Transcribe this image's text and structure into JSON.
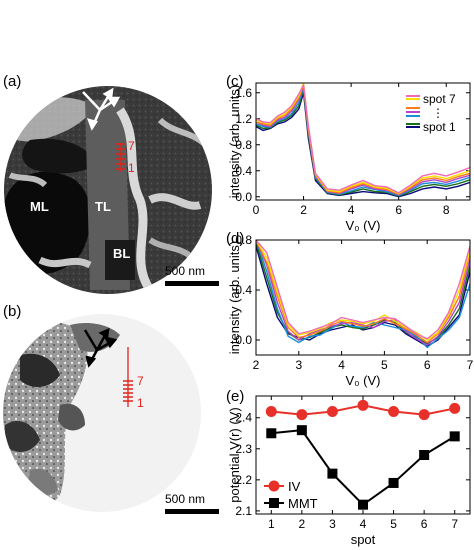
{
  "panels": {
    "a": {
      "label": "(a)",
      "regions": [
        "ML",
        "TL",
        "BL"
      ],
      "spot_top": "7",
      "spot_bottom": "1",
      "scalebar": "500 nm"
    },
    "b": {
      "label": "(b)",
      "spot_top": "7",
      "spot_bottom": "1",
      "scalebar": "500 nm"
    },
    "c": {
      "label": "(c)"
    },
    "d": {
      "label": "(d)"
    },
    "e": {
      "label": "(e)"
    }
  },
  "colors": {
    "spot_series": [
      "#0b0b7a",
      "#1a6e1a",
      "#1b8fd8",
      "#b347c8",
      "#ff7a1a",
      "#f5e000",
      "#f26ab5"
    ],
    "iv": "#e8302a",
    "mmt": "#000000",
    "spot_marker": "#e0241b"
  },
  "chart_data": [
    {
      "id": "c",
      "type": "line",
      "xlabel": "V₀ (V)",
      "ylabel": "intensity (arb. units)",
      "xlim": [
        0,
        9
      ],
      "ylim": [
        -0.05,
        1.75
      ],
      "xticks": [
        0,
        2,
        4,
        6,
        8
      ],
      "yticks": [
        0.0,
        0.4,
        0.8,
        1.2,
        1.6
      ],
      "yticklabels": [
        "0.0",
        "0.4",
        "0.8",
        "1.2",
        "1.6"
      ],
      "legend": {
        "position": "top-right",
        "entries": [
          "spot 7",
          "spot 1"
        ],
        "ellipsis": "⋮"
      },
      "x": [
        0,
        0.3,
        0.6,
        0.9,
        1.2,
        1.5,
        1.8,
        2.0,
        2.2,
        2.5,
        3.0,
        3.5,
        4.0,
        4.5,
        5.0,
        5.5,
        6.0,
        6.5,
        7.0,
        7.5,
        8.0,
        8.5,
        9.0
      ],
      "series": [
        {
          "values": [
            1.08,
            1.02,
            1.05,
            1.12,
            1.15,
            1.22,
            1.35,
            1.6,
            0.9,
            0.25,
            0.05,
            0.02,
            0.05,
            0.08,
            0.06,
            0.05,
            0.0,
            0.05,
            0.12,
            0.15,
            0.12,
            0.16,
            0.22
          ]
        },
        {
          "values": [
            1.1,
            1.05,
            1.06,
            1.14,
            1.18,
            1.25,
            1.4,
            1.65,
            0.95,
            0.28,
            0.06,
            0.03,
            0.07,
            0.12,
            0.08,
            0.07,
            0.01,
            0.08,
            0.16,
            0.19,
            0.16,
            0.2,
            0.26
          ]
        },
        {
          "values": [
            1.12,
            1.08,
            1.07,
            1.16,
            1.2,
            1.28,
            1.45,
            1.68,
            1.0,
            0.3,
            0.07,
            0.04,
            0.09,
            0.15,
            0.11,
            0.08,
            0.02,
            0.1,
            0.2,
            0.22,
            0.19,
            0.24,
            0.3
          ]
        },
        {
          "values": [
            1.15,
            1.1,
            1.08,
            1.18,
            1.22,
            1.32,
            1.5,
            1.7,
            1.02,
            0.32,
            0.08,
            0.05,
            0.12,
            0.18,
            0.12,
            0.1,
            0.03,
            0.12,
            0.23,
            0.26,
            0.22,
            0.28,
            0.33
          ]
        },
        {
          "values": [
            1.15,
            1.12,
            1.1,
            1.2,
            1.25,
            1.35,
            1.52,
            1.72,
            1.05,
            0.33,
            0.09,
            0.06,
            0.14,
            0.2,
            0.14,
            0.11,
            0.04,
            0.14,
            0.26,
            0.29,
            0.25,
            0.31,
            0.36
          ]
        },
        {
          "values": [
            1.18,
            1.14,
            1.12,
            1.22,
            1.27,
            1.38,
            1.55,
            1.75,
            1.08,
            0.35,
            0.1,
            0.08,
            0.16,
            0.22,
            0.15,
            0.13,
            0.05,
            0.16,
            0.29,
            0.32,
            0.28,
            0.34,
            0.4
          ]
        },
        {
          "values": [
            1.2,
            1.15,
            1.14,
            1.24,
            1.3,
            1.4,
            1.58,
            1.72,
            1.1,
            0.36,
            0.12,
            0.1,
            0.18,
            0.25,
            0.17,
            0.15,
            0.06,
            0.18,
            0.32,
            0.36,
            0.32,
            0.38,
            0.45
          ]
        }
      ]
    },
    {
      "id": "d",
      "type": "line",
      "xlabel": "V₀ (V)",
      "ylabel": "intensity (arb. units)",
      "xlim": [
        2,
        7
      ],
      "ylim": [
        -0.12,
        0.8
      ],
      "xticks": [
        2,
        3,
        4,
        5,
        6,
        7
      ],
      "yticks": [
        0.0,
        0.4,
        0.8
      ],
      "yticklabels": [
        "0.0",
        "0.4",
        "0.8"
      ],
      "x": [
        2.0,
        2.25,
        2.5,
        2.75,
        3.0,
        3.25,
        3.5,
        3.75,
        4.0,
        4.25,
        4.5,
        4.75,
        5.0,
        5.25,
        5.5,
        5.75,
        6.0,
        6.25,
        6.5,
        6.75,
        7.0
      ],
      "series": [
        {
          "values": [
            0.75,
            0.45,
            0.18,
            0.05,
            0.02,
            0.0,
            0.05,
            0.08,
            0.1,
            0.12,
            0.08,
            0.1,
            0.14,
            0.12,
            0.05,
            0.0,
            -0.05,
            0.0,
            0.1,
            0.2,
            0.55
          ]
        },
        {
          "values": [
            0.78,
            0.5,
            0.22,
            0.06,
            0.0,
            0.02,
            0.06,
            0.1,
            0.12,
            0.1,
            0.09,
            0.12,
            0.16,
            0.14,
            0.06,
            0.02,
            -0.03,
            0.02,
            0.12,
            0.25,
            0.6
          ]
        },
        {
          "values": [
            0.8,
            0.55,
            0.25,
            0.03,
            -0.02,
            0.03,
            0.04,
            0.09,
            0.14,
            0.11,
            0.1,
            0.14,
            0.12,
            0.1,
            0.08,
            0.03,
            -0.06,
            0.01,
            0.08,
            0.18,
            0.45
          ]
        },
        {
          "values": [
            0.8,
            0.6,
            0.3,
            0.07,
            0.0,
            0.05,
            0.08,
            0.11,
            0.13,
            0.14,
            0.12,
            0.1,
            0.15,
            0.16,
            0.07,
            0.01,
            -0.04,
            0.03,
            0.15,
            0.3,
            0.65
          ]
        },
        {
          "values": [
            0.8,
            0.62,
            0.35,
            0.1,
            0.02,
            0.04,
            0.07,
            0.12,
            0.15,
            0.13,
            0.11,
            0.13,
            0.17,
            0.13,
            0.09,
            0.04,
            -0.02,
            0.05,
            0.18,
            0.35,
            0.7
          ]
        },
        {
          "values": [
            0.8,
            0.66,
            0.38,
            0.12,
            0.04,
            0.06,
            0.09,
            0.14,
            0.16,
            0.15,
            0.13,
            0.15,
            0.2,
            0.15,
            0.1,
            0.06,
            0.0,
            0.06,
            0.2,
            0.4,
            0.72
          ]
        },
        {
          "values": [
            0.8,
            0.7,
            0.42,
            0.14,
            0.05,
            0.07,
            0.1,
            0.13,
            0.18,
            0.16,
            0.14,
            0.16,
            0.18,
            0.17,
            0.11,
            0.05,
            0.01,
            0.08,
            0.22,
            0.45,
            0.75
          ]
        }
      ]
    },
    {
      "id": "e",
      "type": "line",
      "xlabel": "spot",
      "ylabel": "potential V(r) (V)",
      "xlim": [
        0.5,
        7.5
      ],
      "ylim": [
        2.09,
        2.47
      ],
      "xticks": [
        1,
        2,
        3,
        4,
        5,
        6,
        7
      ],
      "yticks": [
        2.1,
        2.2,
        2.3,
        2.4
      ],
      "yticklabels": [
        "2.1",
        "2.2",
        "2.3",
        "2.4"
      ],
      "legend": {
        "position": "bottom-left"
      },
      "x": [
        1,
        2,
        3,
        4,
        5,
        6,
        7
      ],
      "series": [
        {
          "name": "IV",
          "marker": "circle",
          "values": [
            2.42,
            2.41,
            2.42,
            2.44,
            2.42,
            2.41,
            2.43
          ]
        },
        {
          "name": "MMT",
          "marker": "square",
          "values": [
            2.35,
            2.36,
            2.22,
            2.12,
            2.19,
            2.28,
            2.34
          ]
        }
      ]
    }
  ]
}
